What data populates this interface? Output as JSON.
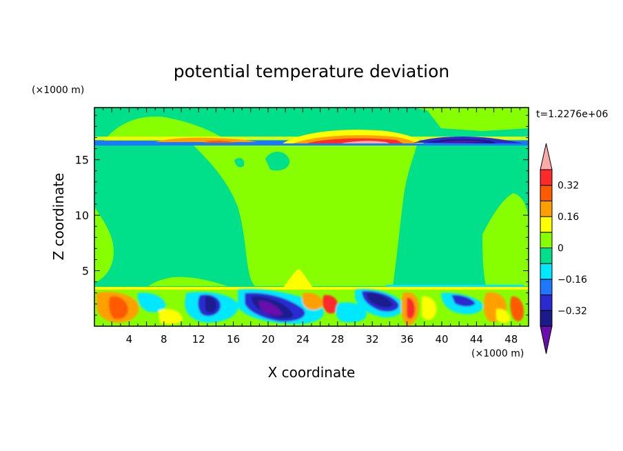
{
  "chart_data": {
    "type": "heatmap",
    "title": "potential temperature deviation",
    "xlabel": "X coordinate",
    "ylabel": "Z coordinate",
    "x_unit": "(×1000 m)",
    "y_unit": "(×1000 m)",
    "time_label": "t=1.2276e+06",
    "xlim": [
      0,
      50
    ],
    "ylim": [
      0,
      19.7
    ],
    "x_ticks": [
      4,
      8,
      12,
      16,
      20,
      24,
      28,
      32,
      36,
      40,
      44,
      48
    ],
    "y_ticks": [
      5,
      10,
      15
    ],
    "colorbar": {
      "levels": [
        -0.4,
        -0.32,
        -0.24,
        -0.16,
        -0.08,
        0,
        0.08,
        0.16,
        0.24,
        0.32,
        0.4
      ],
      "tick_labels": [
        "0.32",
        "0.16",
        "0",
        "−0.16",
        "−0.32"
      ],
      "tick_values": [
        0.32,
        0.16,
        0,
        -0.16,
        -0.32
      ],
      "colors": [
        "#6a0dad",
        "#1a1a8c",
        "#2a2ad0",
        "#1e78ff",
        "#00e8ff",
        "#00e08a",
        "#88ff00",
        "#ffff00",
        "#ffa000",
        "#ff5a00",
        "#ff2a2a",
        "#ffaaaa"
      ]
    },
    "features": [
      {
        "x": [
          0,
          50
        ],
        "y": [
          16.6,
          17.0
        ],
        "value": -0.24
      },
      {
        "x": [
          10,
          17
        ],
        "y": [
          16.7,
          17.0
        ],
        "value": 0.32
      },
      {
        "x": [
          26,
          34
        ],
        "y": [
          16.8,
          17.4
        ],
        "value": 0.4
      },
      {
        "x": [
          38,
          46
        ],
        "y": [
          16.8,
          17.3
        ],
        "value": -0.4
      },
      {
        "x": [
          12,
          18
        ],
        "y": [
          1.0,
          3.2
        ],
        "value": -0.4
      },
      {
        "x": [
          19,
          25
        ],
        "y": [
          0.6,
          3.0
        ],
        "value": -0.4
      },
      {
        "x": [
          32,
          36
        ],
        "y": [
          2.0,
          3.2
        ],
        "value": -0.4
      },
      {
        "x": [
          1,
          5
        ],
        "y": [
          0.8,
          3.0
        ],
        "value": 0.32
      },
      {
        "x": [
          36,
          38
        ],
        "y": [
          0.5,
          3.2
        ],
        "value": 0.32
      }
    ]
  }
}
